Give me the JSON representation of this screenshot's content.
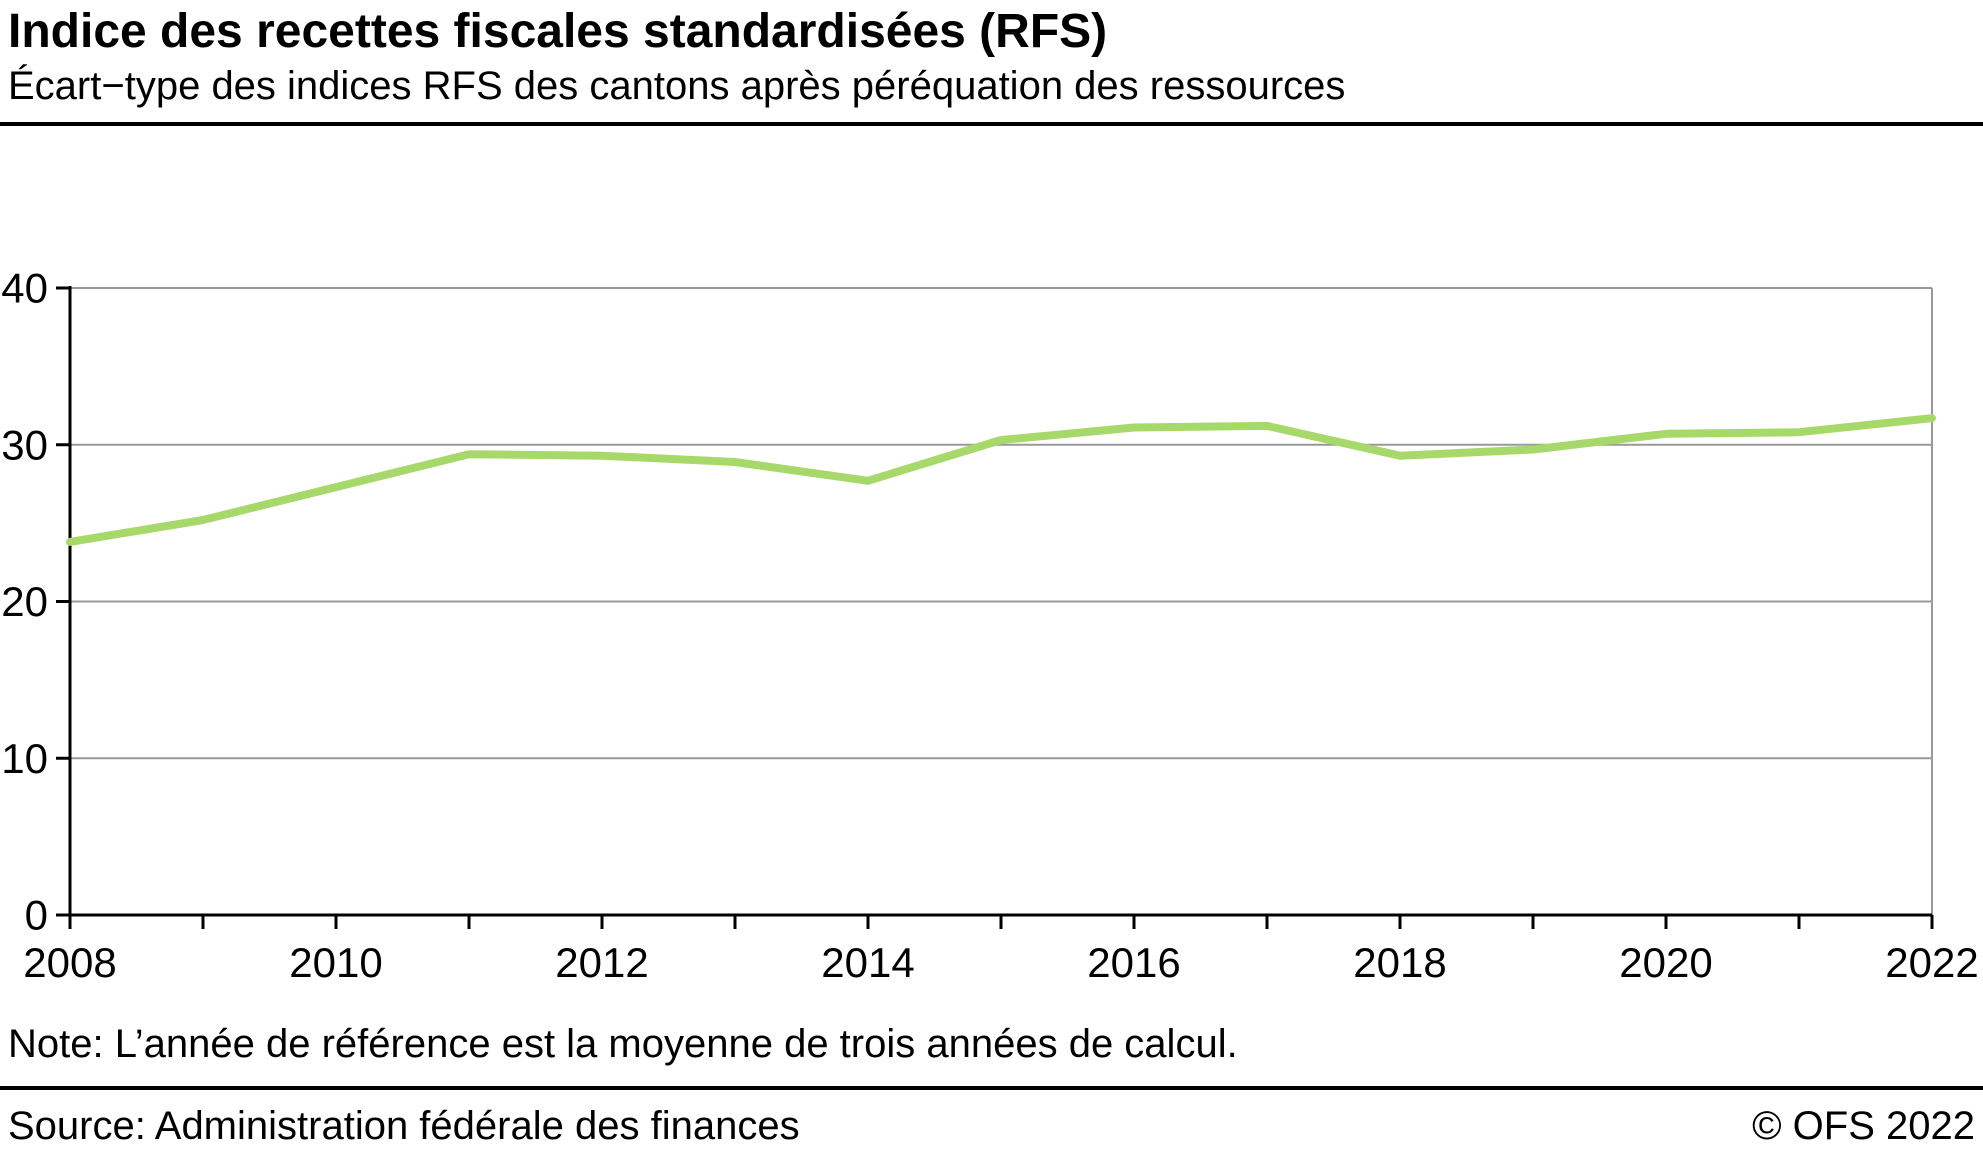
{
  "header": {
    "title": "Indice des recettes fiscales standardisées (RFS)",
    "subtitle": "Écart−type des indices RFS des cantons après péréquation des ressources"
  },
  "note": "Note: L’année de référence est la moyenne de trois années de calcul.",
  "footer": {
    "source": "Source: Administration fédérale des finances",
    "copyright": "© OFS 2022"
  },
  "chart_data": {
    "type": "line",
    "title": "Indice des recettes fiscales standardisées (RFS)",
    "subtitle": "Écart−type des indices RFS des cantons après péréquation des ressources",
    "x": [
      2008,
      2009,
      2010,
      2011,
      2012,
      2013,
      2014,
      2015,
      2016,
      2017,
      2018,
      2019,
      2020,
      2021,
      2022
    ],
    "values": [
      23.8,
      25.2,
      27.3,
      29.4,
      29.3,
      28.9,
      27.7,
      30.3,
      31.1,
      31.2,
      29.3,
      29.7,
      30.7,
      30.8,
      31.7
    ],
    "xlabel": "",
    "ylabel": "",
    "ylim": [
      0,
      40
    ],
    "yticks": [
      0,
      10,
      20,
      30,
      40
    ],
    "xtick_labels": [
      2008,
      2010,
      2012,
      2014,
      2016,
      2018,
      2020,
      2022
    ],
    "grid": "horizontal",
    "legend": "none",
    "line_color": "#a6d96a",
    "grid_color": "#999999",
    "axis_color": "#000000"
  }
}
